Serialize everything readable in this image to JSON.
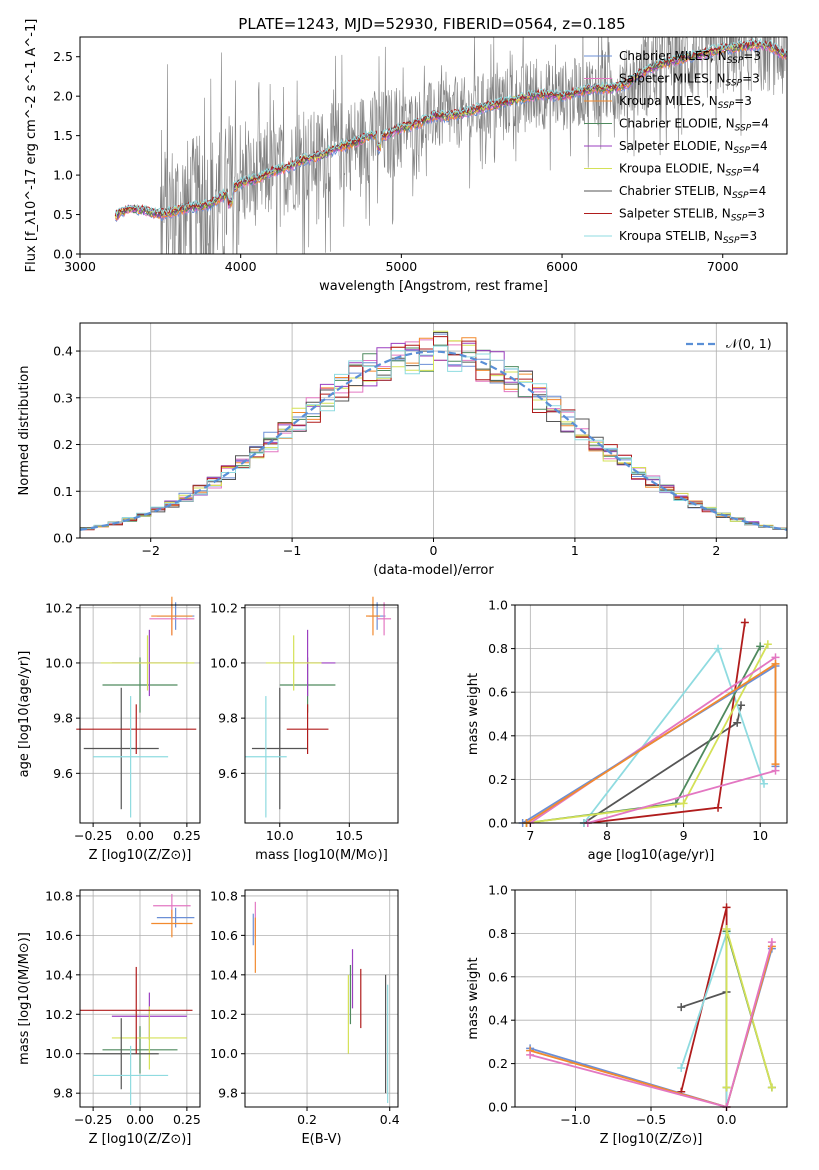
{
  "figure": {
    "title": "PLATE=1243, MJD=52930, FIBERID=0564, z=0.185"
  },
  "models": [
    {
      "name": "Chabrier MILES",
      "nssp": "3",
      "color": "#6b8fd6"
    },
    {
      "name": "Salpeter MILES",
      "nssp": "3",
      "color": "#e377c2"
    },
    {
      "name": "Kroupa MILES",
      "nssp": "3",
      "color": "#f28a2e"
    },
    {
      "name": "Chabrier ELODIE",
      "nssp": "4",
      "color": "#4f8a5e"
    },
    {
      "name": "Salpeter ELODIE",
      "nssp": "4",
      "color": "#9b3fc0"
    },
    {
      "name": "Kroupa ELODIE",
      "nssp": "4",
      "color": "#d4e157"
    },
    {
      "name": "Chabrier STELIB",
      "nssp": "4",
      "color": "#555555"
    },
    {
      "name": "Salpeter STELIB",
      "nssp": "3",
      "color": "#b01c1c"
    },
    {
      "name": "Kroupa STELIB",
      "nssp": "3",
      "color": "#8fdbe0"
    }
  ],
  "chart_data": [
    {
      "id": "spectrum",
      "type": "line",
      "title": "PLATE=1243, MJD=52930, FIBERID=0564, z=0.185",
      "xlabel": "wavelength [Angstrom, rest frame]",
      "ylabel": "Flux [f_λ10^-17 erg cm^-2 s^-1 A^-1]",
      "xlim": [
        3000,
        7400
      ],
      "ylim": [
        0,
        2.75
      ],
      "xticks": [
        "3000",
        "4000",
        "5000",
        "6000",
        "7000"
      ],
      "yticks": [
        "0.0",
        "0.5",
        "1.0",
        "1.5",
        "2.0",
        "2.5"
      ],
      "data_color": "#808080",
      "model_continuum": {
        "x": [
          3200,
          3300,
          3400,
          3500,
          3600,
          3700,
          3800,
          3900,
          4000,
          4100,
          4200,
          4300,
          4400,
          4500,
          4600,
          4700,
          4800,
          4900,
          5000,
          5100,
          5200,
          5300,
          5400,
          5500,
          5600,
          5700,
          5800,
          5900,
          6000,
          6100,
          6200,
          6300,
          6400,
          6500,
          6600,
          6700,
          6800,
          6900,
          7000,
          7100,
          7200,
          7300,
          7400
        ],
        "y": [
          0.45,
          0.58,
          0.55,
          0.5,
          0.55,
          0.6,
          0.62,
          0.75,
          0.9,
          0.95,
          1.05,
          1.1,
          1.2,
          1.25,
          1.35,
          1.4,
          1.5,
          1.5,
          1.6,
          1.65,
          1.75,
          1.75,
          1.8,
          1.85,
          1.9,
          1.95,
          2.0,
          2.02,
          2.0,
          2.05,
          2.1,
          2.1,
          2.15,
          2.3,
          2.4,
          2.45,
          2.5,
          2.55,
          2.6,
          2.62,
          2.65,
          2.63,
          2.5
        ]
      },
      "data_noise_note": "",
      "legend_location": "right"
    },
    {
      "id": "residuals",
      "type": "histogram",
      "xlabel": "(data-model)/error",
      "ylabel": "Normed distribution",
      "xlim": [
        -2.5,
        2.5
      ],
      "ylim": [
        0,
        0.46
      ],
      "xticks": [
        "−2",
        "−1",
        "0",
        "1",
        "2"
      ],
      "yticks": [
        "0.0",
        "0.1",
        "0.2",
        "0.3",
        "0.4"
      ],
      "reference_label": "𝒩(0, 1)",
      "reference_color": "#5a8fd6",
      "bin_edges_start": -2.5,
      "bin_width": 0.1
    },
    {
      "id": "age-vs-z",
      "type": "errorbar",
      "xlabel": "Z [log10(Z/Z⊙)]",
      "ylabel": "age  [log10(age/yr)]",
      "xlim": [
        -0.32,
        0.32
      ],
      "ylim": [
        9.42,
        10.21
      ],
      "xticks": [
        "−0.25",
        "0.00",
        "0.25"
      ],
      "yticks": [
        "9.6",
        "9.8",
        "10.0",
        "10.2"
      ],
      "points": [
        {
          "model": 0,
          "x": 0.19,
          "y": 10.17,
          "xerr": 0.1,
          "yerr": 0.05
        },
        {
          "model": 1,
          "x": 0.17,
          "y": 10.16,
          "xerr": 0.12,
          "yerr": 0.06
        },
        {
          "model": 2,
          "x": 0.17,
          "y": 10.17,
          "xerr": 0.11,
          "yerr": 0.07
        },
        {
          "model": 3,
          "x": 0.0,
          "y": 9.92,
          "xerr": 0.2,
          "yerr": 0.1
        },
        {
          "model": 4,
          "x": 0.05,
          "y": 10.0,
          "xerr": 0.2,
          "yerr": 0.12
        },
        {
          "model": 5,
          "x": 0.04,
          "y": 10.0,
          "xerr": 0.25,
          "yerr": 0.1
        },
        {
          "model": 6,
          "x": -0.1,
          "y": 9.69,
          "xerr": 0.2,
          "yerr": 0.22
        },
        {
          "model": 7,
          "x": -0.02,
          "y": 9.76,
          "xerr": 0.32,
          "yerr": 0.09
        },
        {
          "model": 8,
          "x": -0.05,
          "y": 9.66,
          "xerr": 0.2,
          "yerr": 0.22
        }
      ]
    },
    {
      "id": "age-vs-mass",
      "type": "errorbar",
      "xlabel": "mass [log10(M/M⊙)]",
      "ylabel": "",
      "xlim": [
        9.75,
        10.85
      ],
      "ylim": [
        9.42,
        10.21
      ],
      "xticks": [
        "10.0",
        "10.5"
      ],
      "yticks": [
        "9.6",
        "9.8",
        "10.0",
        "10.2"
      ],
      "points": [
        {
          "model": 0,
          "x": 10.7,
          "y": 10.17,
          "xerr": 0.06,
          "yerr": 0.05
        },
        {
          "model": 1,
          "x": 10.75,
          "y": 10.16,
          "xerr": 0.05,
          "yerr": 0.06
        },
        {
          "model": 2,
          "x": 10.67,
          "y": 10.17,
          "xerr": 0.05,
          "yerr": 0.07
        },
        {
          "model": 3,
          "x": 10.2,
          "y": 9.92,
          "xerr": 0.2,
          "yerr": 0.1
        },
        {
          "model": 4,
          "x": 10.2,
          "y": 10.0,
          "xerr": 0.2,
          "yerr": 0.12
        },
        {
          "model": 5,
          "x": 10.1,
          "y": 10.0,
          "xerr": 0.2,
          "yerr": 0.1
        },
        {
          "model": 6,
          "x": 10.0,
          "y": 9.69,
          "xerr": 0.2,
          "yerr": 0.22
        },
        {
          "model": 7,
          "x": 10.2,
          "y": 9.76,
          "xerr": 0.15,
          "yerr": 0.09
        },
        {
          "model": 8,
          "x": 9.9,
          "y": 9.66,
          "xerr": 0.15,
          "yerr": 0.22
        }
      ]
    },
    {
      "id": "mass-weight-vs-age",
      "type": "line",
      "xlabel": "age  [log10(age/yr)]",
      "ylabel": "mass weight",
      "xlim": [
        6.8,
        10.35
      ],
      "ylim": [
        0,
        1
      ],
      "xticks": [
        "7",
        "8",
        "9",
        "10"
      ],
      "yticks": [
        "0.0",
        "0.2",
        "0.4",
        "0.6",
        "0.8",
        "1.0"
      ],
      "series": [
        {
          "model": 6,
          "x": [
            7.7,
            9.7,
            9.75
          ],
          "y": [
            0.0,
            0.46,
            0.54
          ]
        },
        {
          "model": 8,
          "x": [
            7.7,
            9.45,
            10.05
          ],
          "y": [
            0.0,
            0.8,
            0.18
          ]
        },
        {
          "model": 7,
          "x": [
            7.75,
            9.45,
            9.8
          ],
          "y": [
            0.0,
            0.07,
            0.92
          ]
        },
        {
          "model": 3,
          "x": [
            6.95,
            8.9,
            10.0
          ],
          "y": [
            0.0,
            0.09,
            0.81
          ]
        },
        {
          "model": 5,
          "x": [
            6.95,
            9.0,
            10.1
          ],
          "y": [
            0.0,
            0.09,
            0.82
          ]
        },
        {
          "model": 1,
          "x": [
            7.0,
            10.2
          ],
          "y": [
            0.0,
            0.76
          ]
        },
        {
          "model": 0,
          "x": [
            6.9,
            10.2,
            10.2
          ],
          "y": [
            0.0,
            0.72,
            0.26
          ]
        },
        {
          "model": 2,
          "x": [
            6.95,
            10.2,
            10.2
          ],
          "y": [
            0.0,
            0.73,
            0.27
          ]
        },
        {
          "model": 1,
          "x": [
            7.75,
            10.2
          ],
          "y": [
            0.0,
            0.24
          ]
        }
      ]
    },
    {
      "id": "mass-vs-z",
      "type": "errorbar",
      "xlabel": "Z [log10(Z/Z⊙)]",
      "ylabel": "mass [log10(M/M⊙)]",
      "xlim": [
        -0.32,
        0.32
      ],
      "ylim": [
        9.73,
        10.83
      ],
      "xticks": [
        "−0.25",
        "0.00",
        "0.25"
      ],
      "yticks": [
        "9.8",
        "10.0",
        "10.2",
        "10.4",
        "10.6",
        "10.8"
      ],
      "points": [
        {
          "model": 0,
          "x": 0.19,
          "y": 10.69,
          "xerr": 0.1,
          "yerr": 0.05
        },
        {
          "model": 1,
          "x": 0.17,
          "y": 10.75,
          "xerr": 0.1,
          "yerr": 0.06
        },
        {
          "model": 2,
          "x": 0.17,
          "y": 10.66,
          "xerr": 0.11,
          "yerr": 0.07
        },
        {
          "model": 3,
          "x": 0.0,
          "y": 10.02,
          "xerr": 0.2,
          "yerr": 0.12
        },
        {
          "model": 4,
          "x": 0.05,
          "y": 10.19,
          "xerr": 0.2,
          "yerr": 0.12
        },
        {
          "model": 5,
          "x": 0.05,
          "y": 10.08,
          "xerr": 0.2,
          "yerr": 0.16
        },
        {
          "model": 6,
          "x": -0.1,
          "y": 10.0,
          "xerr": 0.2,
          "yerr": 0.18
        },
        {
          "model": 7,
          "x": -0.02,
          "y": 10.22,
          "xerr": 0.3,
          "yerr": 0.22
        },
        {
          "model": 8,
          "x": -0.05,
          "y": 9.89,
          "xerr": 0.2,
          "yerr": 0.15
        }
      ]
    },
    {
      "id": "mass-vs-ebv",
      "type": "errorbar",
      "xlabel": "E(B-V)",
      "ylabel": "",
      "xlim": [
        0.05,
        0.42
      ],
      "ylim": [
        9.73,
        10.83
      ],
      "xticks": [
        "0.2",
        "0.4"
      ],
      "yticks": [
        "9.8",
        "10.0",
        "10.2",
        "10.4",
        "10.6",
        "10.8"
      ],
      "points": [
        {
          "model": 0,
          "x": 0.07,
          "y": 10.63,
          "xerr": 0.0,
          "yerr": 0.08
        },
        {
          "model": 1,
          "x": 0.075,
          "y": 10.68,
          "xerr": 0.0,
          "yerr": 0.09
        },
        {
          "model": 2,
          "x": 0.075,
          "y": 10.55,
          "xerr": 0.0,
          "yerr": 0.14
        },
        {
          "model": 3,
          "x": 0.305,
          "y": 10.3,
          "xerr": 0.0,
          "yerr": 0.15
        },
        {
          "model": 4,
          "x": 0.31,
          "y": 10.38,
          "xerr": 0.0,
          "yerr": 0.15
        },
        {
          "model": 5,
          "x": 0.3,
          "y": 10.2,
          "xerr": 0.0,
          "yerr": 0.2
        },
        {
          "model": 6,
          "x": 0.39,
          "y": 10.1,
          "xerr": 0.0,
          "yerr": 0.3
        },
        {
          "model": 7,
          "x": 0.33,
          "y": 10.28,
          "xerr": 0.0,
          "yerr": 0.15
        },
        {
          "model": 8,
          "x": 0.395,
          "y": 10.05,
          "xerr": 0.0,
          "yerr": 0.3
        }
      ]
    },
    {
      "id": "mass-weight-vs-z",
      "type": "line",
      "xlabel": "Z [log10(Z/Z⊙)]",
      "ylabel": "mass weight",
      "xlim": [
        -1.4,
        0.4
      ],
      "ylim": [
        0,
        1
      ],
      "xticks": [
        "−1.0",
        "−0.5",
        "0.0"
      ],
      "yticks": [
        "0.0",
        "0.2",
        "0.4",
        "0.6",
        "0.8",
        "1.0"
      ],
      "series": [
        {
          "model": 6,
          "x": [
            -0.3,
            0.0
          ],
          "y": [
            0.46,
            0.53
          ]
        },
        {
          "model": 7,
          "x": [
            -0.3,
            0.0,
            0.0
          ],
          "y": [
            0.07,
            0.92,
            0.0
          ]
        },
        {
          "model": 8,
          "x": [
            -0.3,
            0.0,
            0.0
          ],
          "y": [
            0.18,
            0.8,
            0.0
          ]
        },
        {
          "model": 3,
          "x": [
            0.0,
            0.0,
            0.3
          ],
          "y": [
            0.09,
            0.81,
            0.09
          ]
        },
        {
          "model": 5,
          "x": [
            0.0,
            0.0,
            0.3
          ],
          "y": [
            0.09,
            0.82,
            0.09
          ]
        },
        {
          "model": 0,
          "x": [
            -1.3,
            0.0,
            0.3
          ],
          "y": [
            0.27,
            0.0,
            0.73
          ]
        },
        {
          "model": 2,
          "x": [
            -1.3,
            0.0,
            0.3
          ],
          "y": [
            0.26,
            0.0,
            0.74
          ]
        },
        {
          "model": 1,
          "x": [
            -1.3,
            0.0,
            0.3
          ],
          "y": [
            0.24,
            0.0,
            0.76
          ]
        }
      ]
    }
  ]
}
